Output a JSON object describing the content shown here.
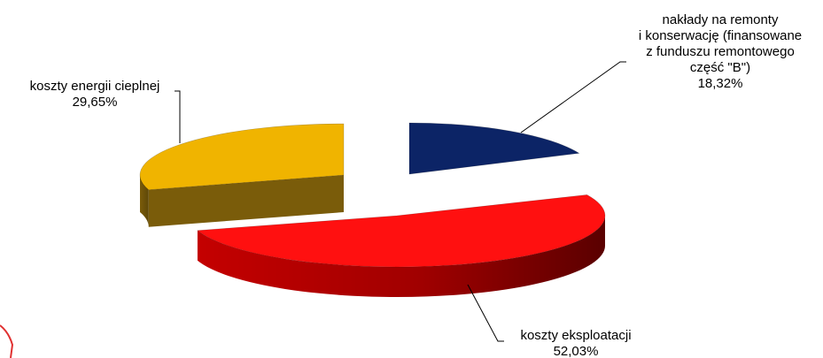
{
  "chart_data": {
    "type": "pie",
    "title": "",
    "three_d": true,
    "exploded": true,
    "slices": [
      {
        "label_lines": [
          "nakłady na remonty",
          "i konserwację (finansowane",
          "z funduszu remontowego",
          "część \"B\")"
        ],
        "value": 18.32,
        "value_label": "18,32%",
        "color": "#0c2466",
        "side_color": "#061436"
      },
      {
        "label_lines": [
          "koszty eksploatacji"
        ],
        "value": 52.03,
        "value_label": "52,03%",
        "color": "#ff1010",
        "side_color": "#8a0000"
      },
      {
        "label_lines": [
          "koszty energii cieplnej"
        ],
        "value": 29.65,
        "value_label": "29,65%",
        "color": "#f0b400",
        "side_color": "#7a5c0a"
      }
    ]
  }
}
